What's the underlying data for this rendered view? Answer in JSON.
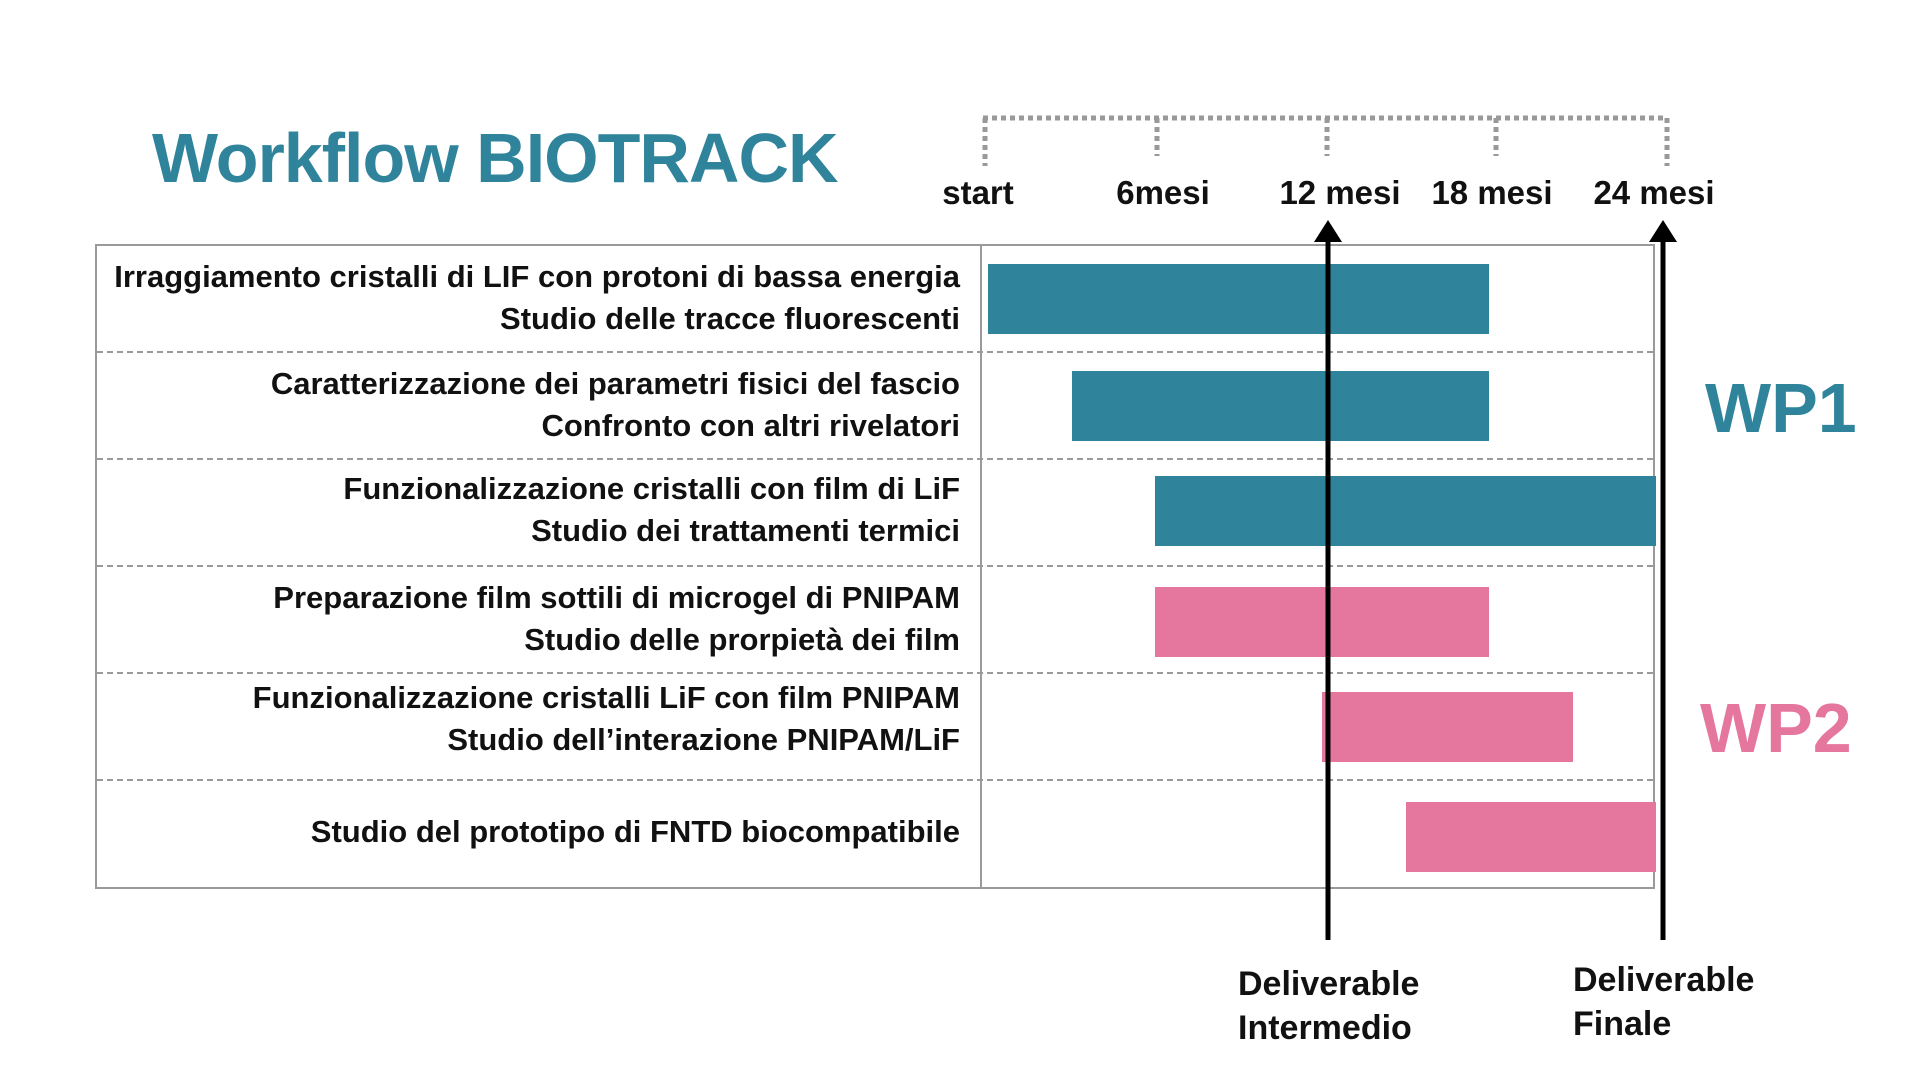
{
  "title": "Workflow BIOTRACK",
  "timeline": {
    "labels": [
      "start",
      "6mesi",
      "12 mesi",
      "18 mesi",
      "24 mesi"
    ]
  },
  "tasks": [
    {
      "line1": "Irraggiamento cristalli di LIF con protoni di bassa energia",
      "line2": "Studio delle tracce fluorescenti"
    },
    {
      "line1": "Caratterizzazione dei parametri fisici del fascio",
      "line2": "Confronto con altri rivelatori"
    },
    {
      "line1": "Funzionalizzazione cristalli con film di LiF",
      "line2": "Studio dei trattamenti termici"
    },
    {
      "line1": "Preparazione film sottili di microgel di PNIPAM",
      "line2": "Studio delle prorpietà dei film"
    },
    {
      "line1": "Funzionalizzazione cristalli LiF con film PNIPAM",
      "line2": "Studio dell’interazione PNIPAM/LiF"
    },
    {
      "line1": "Studio del prototipo di FNTD biocompatibile",
      "line2": ""
    }
  ],
  "bars": [
    {
      "task": 0,
      "start_month": 0,
      "end_month": 18,
      "group": "WP1"
    },
    {
      "task": 1,
      "start_month": 3,
      "end_month": 18,
      "group": "WP1"
    },
    {
      "task": 2,
      "start_month": 6,
      "end_month": 24,
      "group": "WP1"
    },
    {
      "task": 3,
      "start_month": 6,
      "end_month": 18,
      "group": "WP2"
    },
    {
      "task": 4,
      "start_month": 12,
      "end_month": 21,
      "group": "WP2"
    },
    {
      "task": 5,
      "start_month": 15,
      "end_month": 24,
      "group": "WP2"
    }
  ],
  "groups": {
    "wp1": {
      "label": "WP1",
      "color": "#2f849c"
    },
    "wp2": {
      "label": "WP2",
      "color": "#e5779e"
    }
  },
  "milestones": {
    "intermediate": {
      "line1": "Deliverable",
      "line2": "Intermedio",
      "month": 12
    },
    "final": {
      "line1": "Deliverable",
      "line2": "Finale",
      "month": 24
    }
  }
}
